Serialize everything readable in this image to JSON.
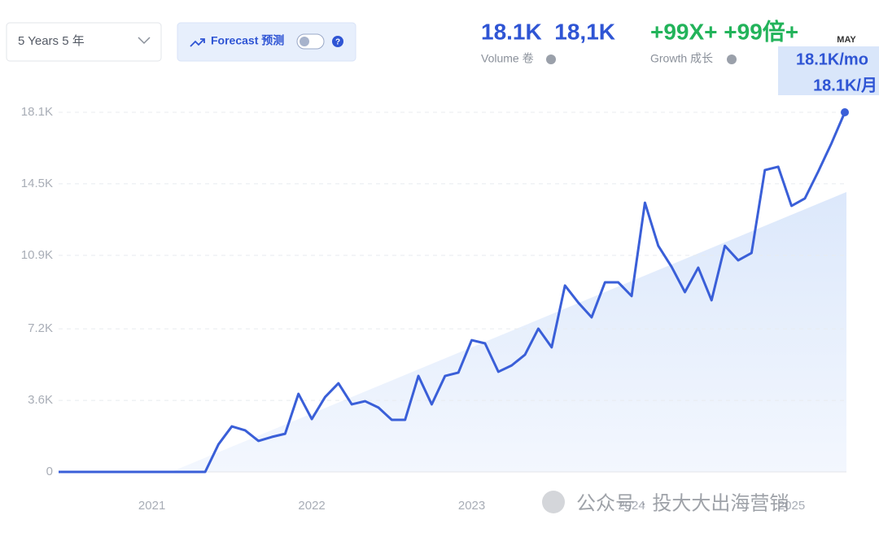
{
  "controls": {
    "range": "5 Years 5 年",
    "forecast": "Forecast 预测"
  },
  "stats": [
    {
      "value": "18.1K  18,1K",
      "label": "Volume 卷"
    },
    {
      "value": "+99X+ +99倍+",
      "label": "Growth 成长"
    }
  ],
  "tooltip": {
    "month": "MAY",
    "lines": [
      "18.1K/mo",
      "18.1K/月"
    ]
  },
  "watermark": "公众号 · 投大大出海营销",
  "chart_data": {
    "type": "line",
    "categories": [
      null,
      null,
      null,
      null,
      null,
      null,
      null,
      "2021",
      null,
      null,
      null,
      null,
      null,
      null,
      null,
      null,
      null,
      null,
      null,
      "2022",
      null,
      null,
      null,
      null,
      null,
      null,
      null,
      null,
      null,
      null,
      null,
      "2023",
      null,
      null,
      null,
      null,
      null,
      null,
      null,
      null,
      null,
      null,
      null,
      "2024",
      null,
      null,
      null,
      null,
      null,
      null,
      null,
      null,
      null,
      null,
      null,
      "2025",
      null,
      null,
      null,
      null
    ],
    "values": [
      0,
      0,
      0,
      0,
      0,
      0,
      0,
      0,
      0,
      0,
      0,
      0,
      1390,
      2290,
      2090,
      1560,
      1760,
      1920,
      3930,
      2660,
      3770,
      4460,
      3400,
      3560,
      3240,
      2620,
      2620,
      4830,
      3400,
      4830,
      5000,
      6630,
      6470,
      5040,
      5360,
      5900,
      7210,
      6270,
      9380,
      8520,
      7780,
      9540,
      9540,
      8850,
      13550,
      11380,
      10320,
      9050,
      10280,
      8640,
      11380,
      10650,
      11020,
      15190,
      15360,
      13390,
      13760,
      15110,
      16540,
      18100
    ],
    "color": "#3a5fd8",
    "ylim": [
      0,
      18100
    ],
    "yticks": [
      0,
      {
        "value": 3600,
        "label": "3.6K"
      },
      {
        "value": 7200,
        "label": "7.2K"
      },
      {
        "value": 10900,
        "label": "10.9K"
      },
      {
        "value": 14500,
        "label": "14.5K"
      },
      {
        "value": 18100,
        "label": "18.1K"
      }
    ],
    "grid": true
  }
}
